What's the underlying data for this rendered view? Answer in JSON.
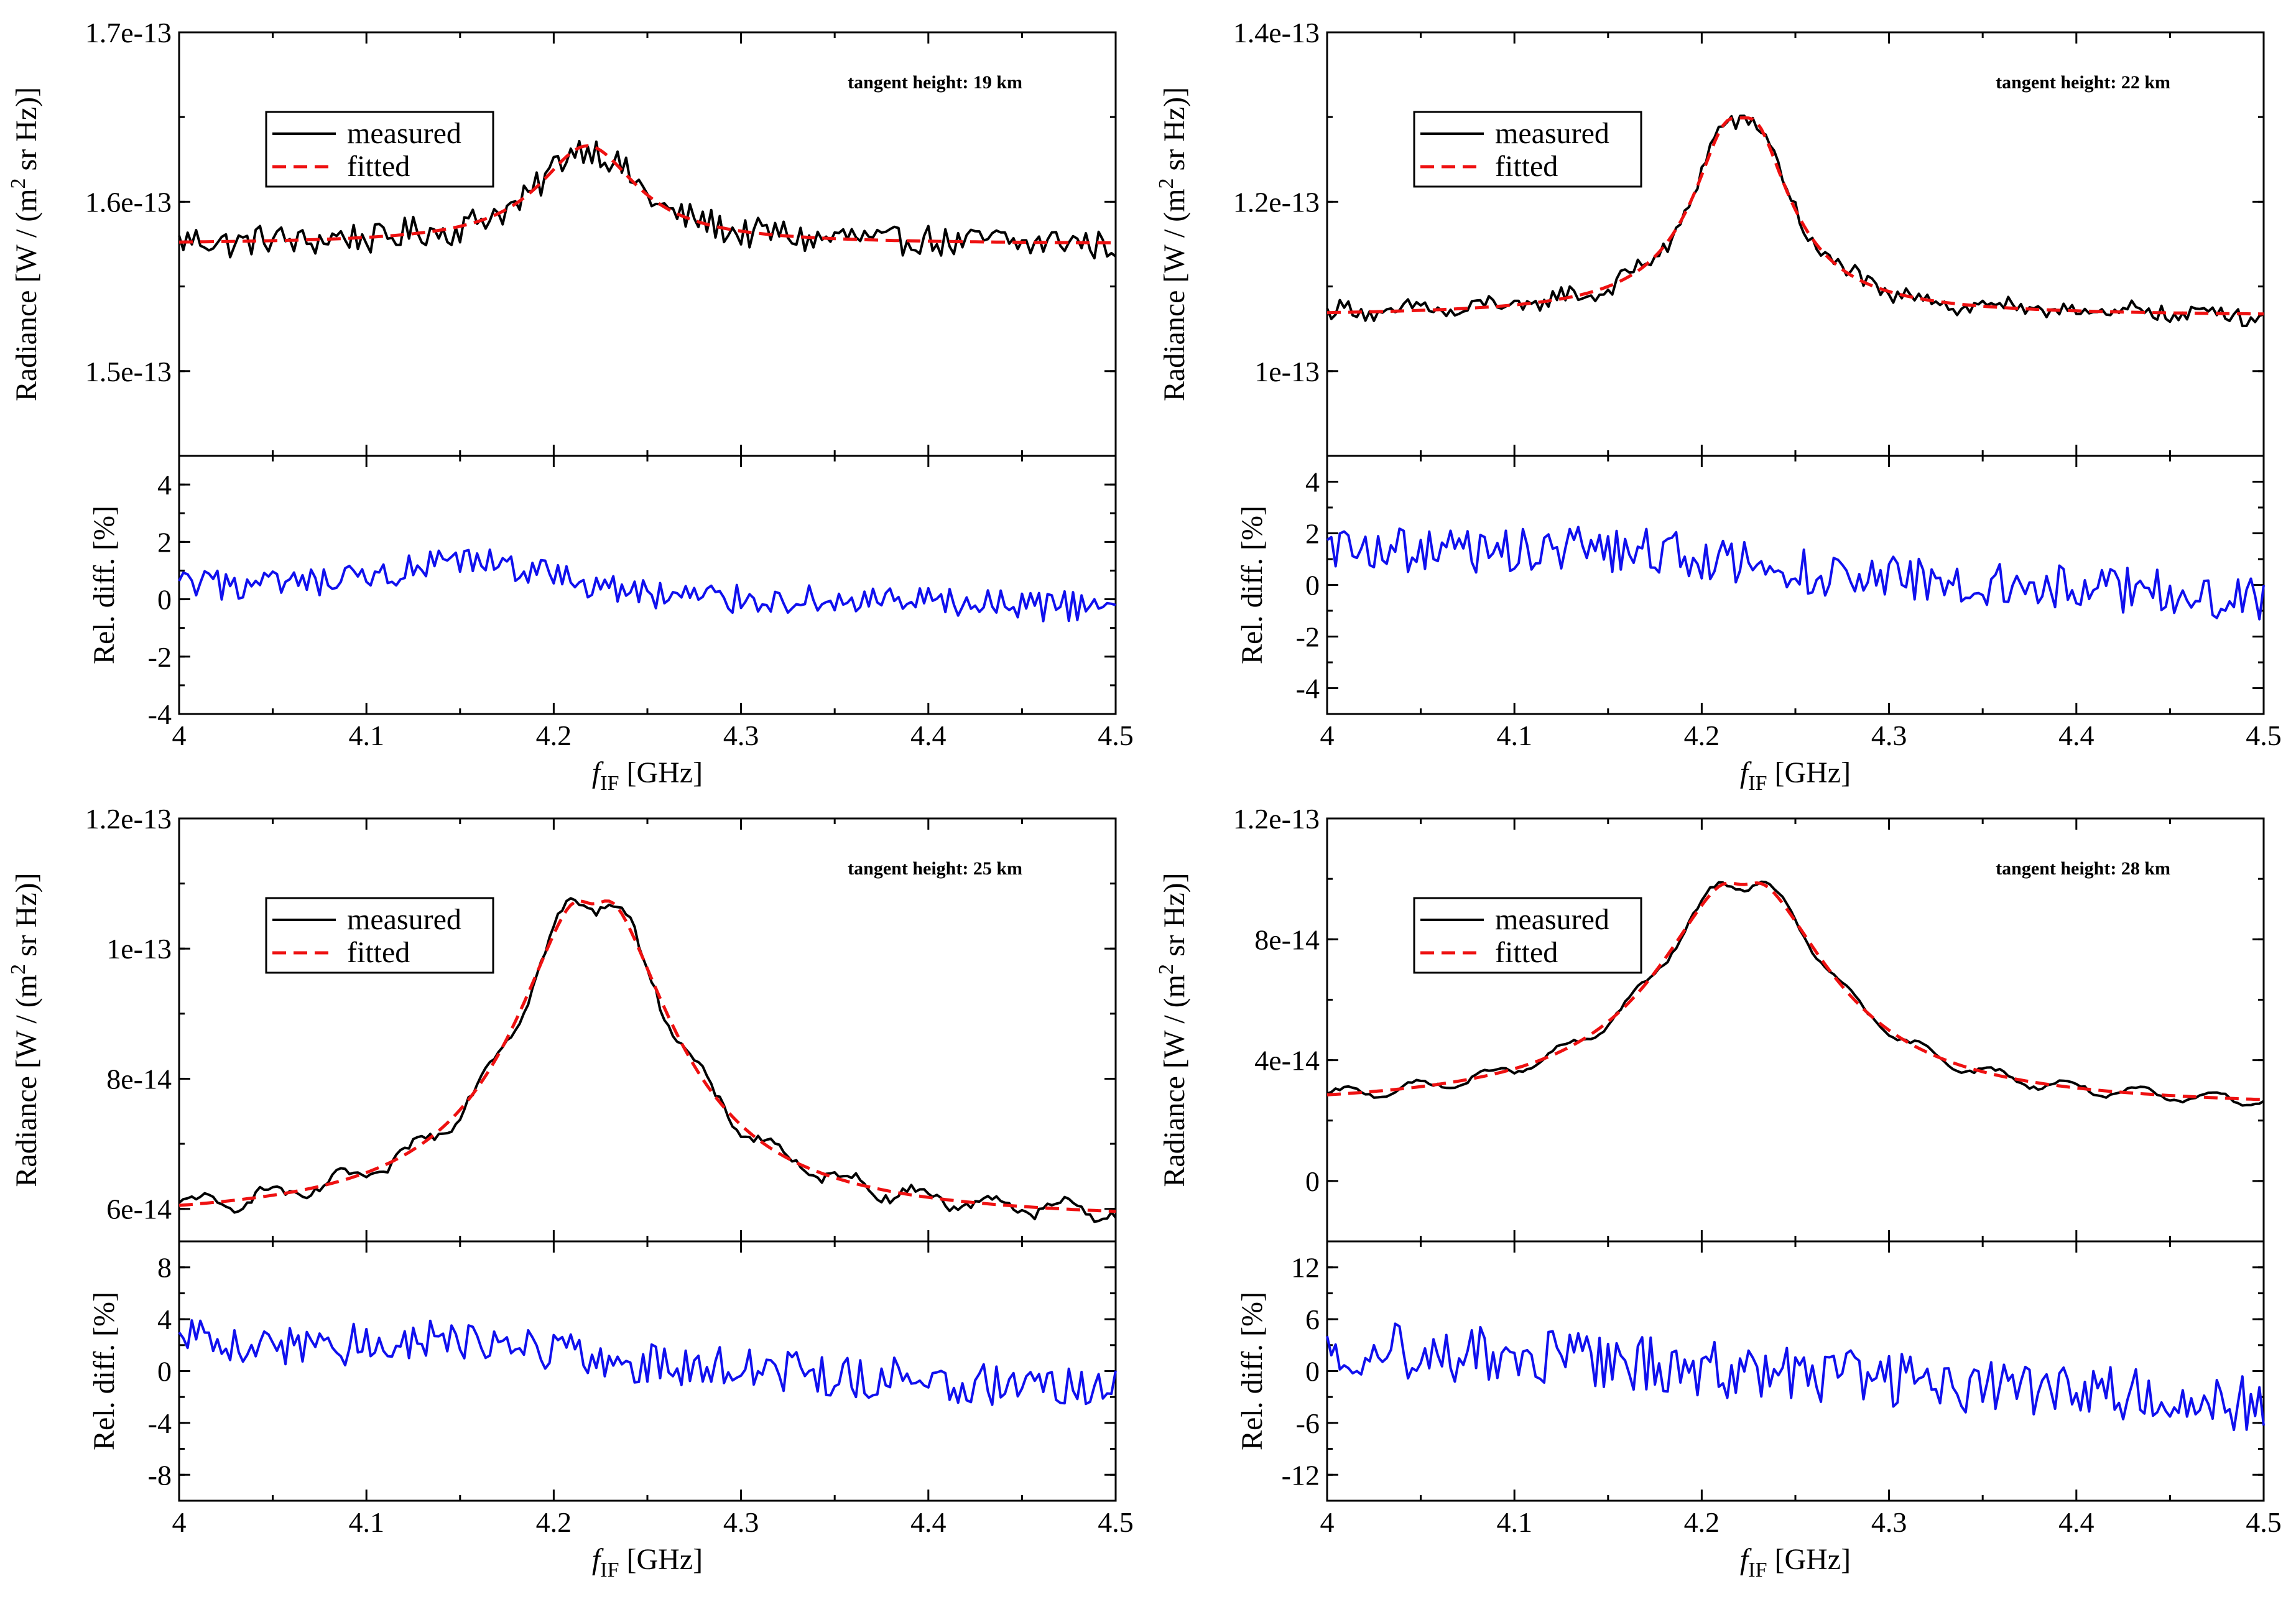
{
  "chart_data": [
    {
      "type": "line",
      "panel": "top-left",
      "annotation": "tangent height: 19 km",
      "x_label_main": "f",
      "x_label_sub": "IF",
      "x_label_unit": "[GHz]",
      "xlim": [
        4.0,
        4.5
      ],
      "x_ticks": [
        4.0,
        4.1,
        4.2,
        4.3,
        4.4,
        4.5
      ],
      "x_tick_labels": [
        "4",
        "4.1",
        "4.2",
        "4.3",
        "4.4",
        "4.5"
      ],
      "radiance": {
        "ylabel_pre": "Radiance [W / (m",
        "ylabel_sup": "2",
        "ylabel_post": " sr Hz)]",
        "ylim": [
          1.45e-13,
          1.7e-13
        ],
        "y_ticks": [
          1.5e-13,
          1.6e-13,
          1.7e-13
        ],
        "y_tick_labels": [
          "1.5e-13",
          "1.6e-13",
          "1.7e-13"
        ],
        "legend": {
          "position": "upper-left",
          "measured": "measured",
          "fitted": "fitted"
        },
        "model": {
          "base": 1.575e-13,
          "amp": 5.8e-15,
          "center": 4.218,
          "width": 0.032,
          "dip": 0.0,
          "noise": 9e-16
        }
      },
      "residual": {
        "ylabel": "Rel. diff. [%]",
        "ylim": [
          -4,
          5
        ],
        "y_ticks": [
          -4,
          -2,
          0,
          2,
          4
        ],
        "y_tick_labels": [
          "-4",
          "-2",
          "0",
          "2",
          "4"
        ],
        "model": {
          "start": 0.5,
          "end": -0.3,
          "bump": 1.0,
          "noise": 0.5
        }
      }
    },
    {
      "type": "line",
      "panel": "top-right",
      "annotation": "tangent height: 22 km",
      "x_label_main": "f",
      "x_label_sub": "IF",
      "x_label_unit": "[GHz]",
      "xlim": [
        4.0,
        4.5
      ],
      "x_ticks": [
        4.0,
        4.1,
        4.2,
        4.3,
        4.4,
        4.5
      ],
      "x_tick_labels": [
        "4",
        "4.1",
        "4.2",
        "4.3",
        "4.4",
        "4.5"
      ],
      "radiance": {
        "ylabel_pre": "Radiance [W / (m",
        "ylabel_sup": "2",
        "ylabel_post": " sr Hz)]",
        "ylim": [
          9e-14,
          1.4e-13
        ],
        "y_ticks": [
          1e-13,
          1.2e-13,
          1.4e-13
        ],
        "y_tick_labels": [
          "1e-13",
          "1.2e-13",
          "1.4e-13"
        ],
        "legend": {
          "position": "upper-left",
          "measured": "measured",
          "fitted": "fitted"
        },
        "model": {
          "base": 1.065e-13,
          "amp": 2.6e-14,
          "center": 4.221,
          "width": 0.028,
          "dip": 0.1,
          "noise": 1e-15
        }
      },
      "residual": {
        "ylabel": "Rel. diff. [%]",
        "ylim": [
          -5,
          5
        ],
        "y_ticks": [
          -4,
          -2,
          0,
          2,
          4
        ],
        "y_tick_labels": [
          "-4",
          "-2",
          "0",
          "2",
          "4"
        ],
        "model": {
          "start": 1.5,
          "end": -0.5,
          "bump": 0.5,
          "noise": 0.8
        }
      }
    },
    {
      "type": "line",
      "panel": "bottom-left",
      "annotation": "tangent height: 25 km",
      "x_label_main": "f",
      "x_label_sub": "IF",
      "x_label_unit": "[GHz]",
      "xlim": [
        4.0,
        4.5
      ],
      "x_ticks": [
        4.0,
        4.1,
        4.2,
        4.3,
        4.4,
        4.5
      ],
      "x_tick_labels": [
        "4",
        "4.1",
        "4.2",
        "4.3",
        "4.4",
        "4.5"
      ],
      "radiance": {
        "ylabel_pre": "Radiance [W / (m",
        "ylabel_sup": "2",
        "ylabel_post": " sr Hz)]",
        "ylim": [
          5.5e-14,
          1.2e-13
        ],
        "y_ticks": [
          6e-14,
          8e-14,
          1e-13,
          1.2e-13
        ],
        "y_tick_labels": [
          "6e-14",
          "8e-14",
          "1e-13",
          "1.2e-13"
        ],
        "legend": {
          "position": "upper-left",
          "measured": "measured",
          "fitted": "fitted"
        },
        "model": {
          "base": 5.8e-14,
          "amp": 5.2e-14,
          "center": 4.221,
          "width": 0.05,
          "dip": 0.06,
          "noise": 7e-16
        }
      },
      "residual": {
        "ylabel": "Rel. diff. [%]",
        "ylim": [
          -10,
          10
        ],
        "y_ticks": [
          -8,
          -4,
          0,
          4,
          8
        ],
        "y_tick_labels": [
          "-8",
          "-4",
          "0",
          "4",
          "8"
        ],
        "model": {
          "start": 2.5,
          "end": -1.5,
          "bump": 1.0,
          "noise": 1.5
        }
      }
    },
    {
      "type": "line",
      "panel": "bottom-right",
      "annotation": "tangent height: 28 km",
      "x_label_main": "f",
      "x_label_sub": "IF",
      "x_label_unit": "[GHz]",
      "xlim": [
        4.0,
        4.5
      ],
      "x_ticks": [
        4.0,
        4.1,
        4.2,
        4.3,
        4.4,
        4.5
      ],
      "x_tick_labels": [
        "4",
        "4.1",
        "4.2",
        "4.3",
        "4.4",
        "4.5"
      ],
      "radiance": {
        "ylabel_pre": "Radiance [W / (m",
        "ylabel_sup": "2",
        "ylabel_post": " sr Hz)]",
        "ylim": [
          -2e-14,
          1.2e-13
        ],
        "y_ticks": [
          0,
          4e-14,
          8e-14,
          1.2e-13
        ],
        "y_tick_labels": [
          "0",
          "4e-14",
          "8e-14",
          "1.2e-13"
        ],
        "legend": {
          "position": "upper-left",
          "measured": "measured",
          "fitted": "fitted"
        },
        "model": {
          "base": 2.4e-14,
          "amp": 7.8e-14,
          "center": 4.222,
          "width": 0.055,
          "dip": 0.05,
          "noise": 6e-16
        }
      },
      "residual": {
        "ylabel": "Rel. diff. [%]",
        "ylim": [
          -15,
          15
        ],
        "y_ticks": [
          -12,
          -6,
          0,
          6,
          12
        ],
        "y_tick_labels": [
          "-12",
          "-6",
          "0",
          "6",
          "12"
        ],
        "model": {
          "start": 3.0,
          "end": -4.0,
          "bump": 0.0,
          "noise": 3.0
        }
      }
    }
  ]
}
